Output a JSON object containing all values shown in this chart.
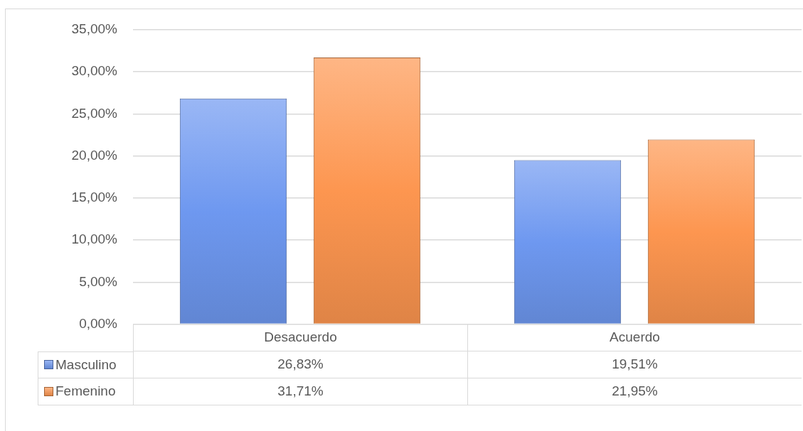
{
  "chart_data": {
    "type": "bar",
    "categories": [
      "Desacuerdo",
      "Acuerdo"
    ],
    "series": [
      {
        "name": "Masculino",
        "color": "#6e98f0",
        "values": [
          26.83,
          19.51
        ],
        "value_labels": [
          "26,83%",
          "19,51%"
        ]
      },
      {
        "name": "Femenino",
        "color": "#fd9650",
        "values": [
          31.71,
          21.95
        ],
        "value_labels": [
          "31,71%",
          "21,95%"
        ]
      }
    ],
    "ylim": [
      0,
      35
    ],
    "yticks": [
      {
        "value": 0,
        "label": "0,00%"
      },
      {
        "value": 5,
        "label": "5,00%"
      },
      {
        "value": 10,
        "label": "10,00%"
      },
      {
        "value": 15,
        "label": "15,00%"
      },
      {
        "value": 20,
        "label": "20,00%"
      },
      {
        "value": 25,
        "label": "25,00%"
      },
      {
        "value": 30,
        "label": "30,00%"
      },
      {
        "value": 35,
        "label": "35,00%"
      }
    ],
    "grid": "y",
    "legend": "bottom"
  }
}
